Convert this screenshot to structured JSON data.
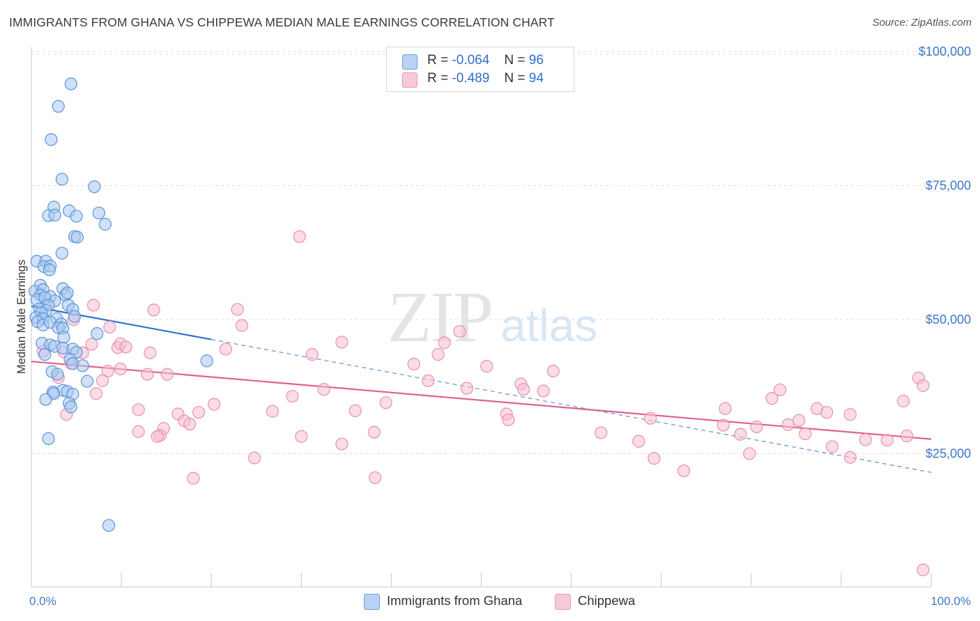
{
  "title": "IMMIGRANTS FROM GHANA VS CHIPPEWA MEDIAN MALE EARNINGS CORRELATION CHART",
  "source": "Source: ZipAtlas.com",
  "watermark": "ZIPatlas",
  "legend": {
    "rows": [
      {
        "r_label": "R =",
        "r_value": "-0.064",
        "n_label": "N =",
        "n_value": "96"
      },
      {
        "r_label": "R =",
        "r_value": "-0.489",
        "n_label": "N =",
        "n_value": "94"
      }
    ]
  },
  "bottom_legend": [
    "Immigrants from Ghana",
    "Chippewa"
  ],
  "colors": {
    "series1_fill": "#a9c8f0",
    "series1_stroke": "#5b93d8",
    "series1_line": "#2f72d1",
    "series2_fill": "#f6bfd2",
    "series2_stroke": "#e890b0",
    "series2_line": "#e0608c",
    "tick_label": "#3d78c8",
    "grid": "#dddddd"
  },
  "chart_data": {
    "type": "scatter",
    "title": "IMMIGRANTS FROM GHANA VS CHIPPEWA MEDIAN MALE EARNINGS CORRELATION CHART",
    "xlabel": "",
    "ylabel": "Median Male Earnings",
    "xlim": [
      0,
      100
    ],
    "ylim": [
      0,
      102500
    ],
    "x_tick_labels": [
      "0.0%",
      "100.0%"
    ],
    "y_ticks": [
      25000,
      50000,
      75000,
      100000
    ],
    "y_tick_labels": [
      "$25,000",
      "$50,000",
      "$75,000",
      "$100,000"
    ],
    "grid": true,
    "series": [
      {
        "name": "Immigrants from Ghana",
        "R": -0.064,
        "N": 96,
        "trend": {
          "x0": 0,
          "y0": 52500,
          "x1": 100,
          "y1": 21500,
          "solid_until_x": 20
        },
        "points": [
          [
            4.4,
            94000
          ],
          [
            3.0,
            89800
          ],
          [
            2.2,
            83600
          ],
          [
            3.4,
            76200
          ],
          [
            7.0,
            74800
          ],
          [
            2.5,
            71000
          ],
          [
            4.2,
            70300
          ],
          [
            1.9,
            69400
          ],
          [
            2.6,
            69500
          ],
          [
            5.0,
            69300
          ],
          [
            7.5,
            69900
          ],
          [
            8.2,
            67800
          ],
          [
            4.8,
            65500
          ],
          [
            5.1,
            65400
          ],
          [
            3.4,
            62400
          ],
          [
            0.6,
            60900
          ],
          [
            1.6,
            60900
          ],
          [
            1.4,
            59900
          ],
          [
            2.1,
            60000
          ],
          [
            2.0,
            59300
          ],
          [
            1.0,
            56400
          ],
          [
            3.5,
            55800
          ],
          [
            0.4,
            55300
          ],
          [
            1.3,
            55600
          ],
          [
            1.0,
            54600
          ],
          [
            2.1,
            54300
          ],
          [
            3.8,
            54600
          ],
          [
            4.0,
            55000
          ],
          [
            0.6,
            53700
          ],
          [
            1.5,
            54100
          ],
          [
            2.6,
            53500
          ],
          [
            1.9,
            52700
          ],
          [
            4.1,
            52700
          ],
          [
            0.9,
            52000
          ],
          [
            1.6,
            51700
          ],
          [
            4.6,
            51900
          ],
          [
            1.1,
            51300
          ],
          [
            0.5,
            50400
          ],
          [
            1.3,
            50200
          ],
          [
            2.8,
            50200
          ],
          [
            4.8,
            50600
          ],
          [
            0.7,
            49600
          ],
          [
            1.3,
            49000
          ],
          [
            2.1,
            49500
          ],
          [
            3.3,
            49200
          ],
          [
            3.0,
            48500
          ],
          [
            3.5,
            48400
          ],
          [
            7.3,
            47400
          ],
          [
            3.6,
            46700
          ],
          [
            1.2,
            45600
          ],
          [
            2.1,
            45300
          ],
          [
            2.6,
            45000
          ],
          [
            3.5,
            44700
          ],
          [
            4.6,
            44500
          ],
          [
            5.0,
            43900
          ],
          [
            1.5,
            43500
          ],
          [
            4.3,
            42600
          ],
          [
            4.6,
            41800
          ],
          [
            5.7,
            41400
          ],
          [
            19.5,
            42300
          ],
          [
            2.3,
            40300
          ],
          [
            2.9,
            39800
          ],
          [
            6.2,
            38500
          ],
          [
            3.5,
            36800
          ],
          [
            2.4,
            36500
          ],
          [
            2.5,
            36200
          ],
          [
            4.0,
            36600
          ],
          [
            4.6,
            36100
          ],
          [
            1.6,
            35100
          ],
          [
            4.2,
            34400
          ],
          [
            4.4,
            33700
          ],
          [
            1.9,
            27800
          ],
          [
            8.6,
            11600
          ]
        ]
      },
      {
        "name": "Chippewa",
        "R": -0.489,
        "N": 94,
        "trend": {
          "x0": 0,
          "y0": 42200,
          "x1": 100,
          "y1": 27700
        },
        "points": [
          [
            29.8,
            65500
          ],
          [
            6.9,
            52700
          ],
          [
            13.6,
            51800
          ],
          [
            22.9,
            51900
          ],
          [
            4.7,
            50000
          ],
          [
            8.7,
            48600
          ],
          [
            23.4,
            48900
          ],
          [
            47.6,
            47800
          ],
          [
            6.7,
            45400
          ],
          [
            9.6,
            44800
          ],
          [
            9.9,
            45500
          ],
          [
            34.5,
            45800
          ],
          [
            45.9,
            45700
          ],
          [
            21.6,
            44500
          ],
          [
            1.3,
            44100
          ],
          [
            3.6,
            44000
          ],
          [
            10.5,
            44900
          ],
          [
            13.2,
            43800
          ],
          [
            5.7,
            43800
          ],
          [
            31.2,
            43500
          ],
          [
            45.2,
            43500
          ],
          [
            42.5,
            41700
          ],
          [
            8.5,
            40400
          ],
          [
            50.6,
            41300
          ],
          [
            9.9,
            40800
          ],
          [
            4.4,
            41800
          ],
          [
            58.0,
            40400
          ],
          [
            12.9,
            39800
          ],
          [
            15.1,
            39800
          ],
          [
            7.9,
            38600
          ],
          [
            44.1,
            38600
          ],
          [
            3.0,
            39200
          ],
          [
            98.6,
            39100
          ],
          [
            54.4,
            38000
          ],
          [
            48.4,
            37200
          ],
          [
            54.7,
            37000
          ],
          [
            56.9,
            36700
          ],
          [
            32.5,
            37000
          ],
          [
            39.4,
            34500
          ],
          [
            7.2,
            36200
          ],
          [
            82.3,
            35300
          ],
          [
            11.9,
            33200
          ],
          [
            16.3,
            32400
          ],
          [
            18.6,
            32700
          ],
          [
            20.3,
            34200
          ],
          [
            26.8,
            32900
          ],
          [
            29.0,
            35700
          ],
          [
            36.0,
            33000
          ],
          [
            52.8,
            32400
          ],
          [
            53.0,
            31300
          ],
          [
            68.8,
            31600
          ],
          [
            77.1,
            33400
          ],
          [
            83.2,
            36900
          ],
          [
            85.3,
            31200
          ],
          [
            87.3,
            33400
          ],
          [
            88.4,
            32700
          ],
          [
            91.0,
            32300
          ],
          [
            96.9,
            34800
          ],
          [
            17.0,
            31100
          ],
          [
            17.6,
            30500
          ],
          [
            11.9,
            29100
          ],
          [
            3.9,
            32300
          ],
          [
            14.7,
            29700
          ],
          [
            14.3,
            28400
          ],
          [
            14.0,
            28200
          ],
          [
            30.0,
            28200
          ],
          [
            34.5,
            26800
          ],
          [
            38.1,
            29000
          ],
          [
            63.3,
            28900
          ],
          [
            67.5,
            27300
          ],
          [
            78.8,
            28600
          ],
          [
            80.6,
            30000
          ],
          [
            84.1,
            30400
          ],
          [
            86.0,
            28700
          ],
          [
            89.0,
            26300
          ],
          [
            95.1,
            27500
          ],
          [
            92.7,
            27600
          ],
          [
            97.3,
            28300
          ],
          [
            99.1,
            37700
          ],
          [
            24.8,
            24200
          ],
          [
            69.2,
            24100
          ],
          [
            72.5,
            21800
          ],
          [
            76.9,
            30300
          ],
          [
            79.8,
            25000
          ],
          [
            91.0,
            24300
          ],
          [
            18.0,
            20400
          ],
          [
            38.2,
            20500
          ],
          [
            99.1,
            3300
          ]
        ]
      }
    ]
  }
}
